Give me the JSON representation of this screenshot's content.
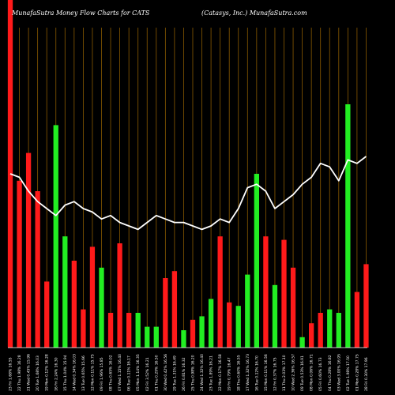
{
  "chart_data": {
    "type": "bar",
    "title": "MunafaSutra  Money Flow  Charts for CATS",
    "subtitle": "(Catasys,  Inc.) MunafaSutra.com",
    "ylim": [
      0,
      100
    ],
    "categories": [
      "23 Fri 1.68% 16.55",
      "22 Thu 1.98% 16.28",
      "21 Wed 0.45% 15.96",
      "20 Tue 1.68% 16.03",
      "19 Mon 0.12% 16.28",
      "16 Fri 2.24% 16.30",
      "15 Thu 1.04% 15.94",
      "14 Wed 0.34% 16.03",
      "13 Tue 0.65% 15.66",
      "12 Mon 0.11% 15.75",
      "09 Fri 1.96% 15.85",
      "08 Thu 0.65% 16.02",
      "07 Wed 1.15% 16.40",
      "06 Tue 0.11% 16.17",
      "05 Mon 1.14% 16.35",
      "02 Fri 3.52% 16.21",
      "01 Thu 0.29% 16.50",
      "30 Wed 0.42% 16.56",
      "29 Tue 1.31% 16.49",
      "26 Fri 0.81% 16.32",
      "25 Thu 0.98% 16.20",
      "24 Wed 1.32% 16.40",
      "23 Tue 1.89% 16.21",
      "22 Mon 0.17% 16.58",
      "19 Fri 0.79% 16.47",
      "18 Thu 0.60% 16.55",
      "17 Wed 1.32% 16.73",
      "16 Tue 0.12% 16.70",
      "15 Mon 0.11% 16.56",
      "12 Fri 0.37% 16.75",
      "11 Thu 2.03% 17.10",
      "10 Wed 2.36% 16.57",
      "09 Tue 0.53% 16.91",
      "08 Mon 0.06% 16.71",
      "05 Fri 0.60% 16.73",
      "04 Thu 0.28% 16.82",
      "03 Wed 3.00% 16.95",
      "02 Tue 1.98% 17.50",
      "01 Mon 0.28% 17.75",
      "28 Fri 0.30% 17.96"
    ],
    "series": [
      {
        "type": "bar",
        "values": [
          100,
          48,
          56,
          45,
          19,
          64,
          32,
          25,
          11,
          29,
          23,
          10,
          30,
          10,
          10,
          6,
          6,
          20,
          22,
          5,
          8,
          9,
          14,
          32,
          13,
          12,
          21,
          50,
          32,
          18,
          31,
          23,
          3,
          7,
          10,
          11,
          10,
          70,
          16,
          24
        ],
        "colors": [
          "red",
          "red",
          "red",
          "red",
          "red",
          "green",
          "green",
          "red",
          "red",
          "red",
          "green",
          "red",
          "red",
          "red",
          "green",
          "green",
          "green",
          "red",
          "red",
          "green",
          "red",
          "green",
          "green",
          "red",
          "red",
          "green",
          "green",
          "green",
          "red",
          "green",
          "red",
          "red",
          "green",
          "red",
          "red",
          "green",
          "green",
          "green",
          "red",
          "red"
        ]
      },
      {
        "type": "line",
        "values": [
          50,
          49,
          45,
          42,
          40,
          38,
          41,
          42,
          40,
          39,
          37,
          38,
          36,
          35,
          34,
          36,
          38,
          37,
          36,
          36,
          35,
          34,
          35,
          37,
          36,
          40,
          46,
          47,
          45,
          40,
          42,
          44,
          47,
          49,
          53,
          52,
          48,
          54,
          53,
          55
        ]
      }
    ]
  }
}
